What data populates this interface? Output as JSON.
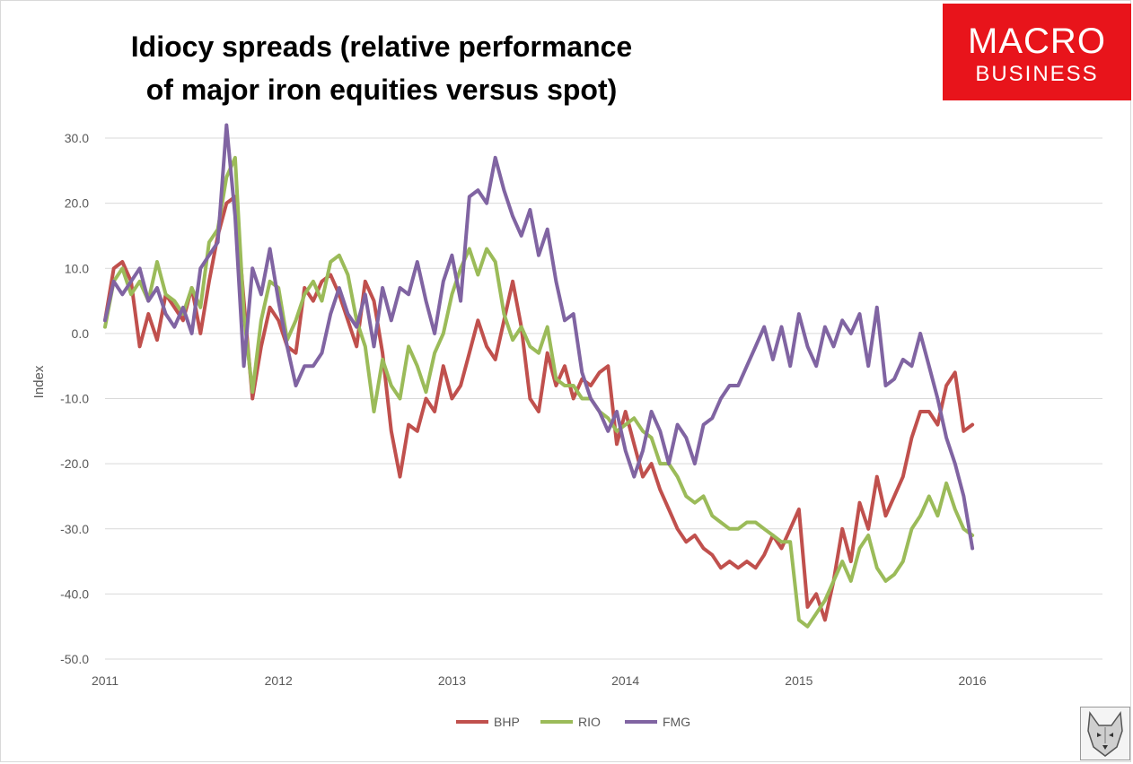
{
  "title": "Idiocy spreads (relative performance\nof major iron equities versus spot)",
  "logo": {
    "line1": "MACRO",
    "line2": "BUSINESS",
    "color": "#e8141b"
  },
  "watermark_icon": "wolf-head-icon",
  "chart_data": {
    "type": "line",
    "title": "Idiocy spreads (relative performance of major iron equities versus spot)",
    "xlabel": "",
    "ylabel": "Index",
    "xlim": [
      2011,
      2016.75
    ],
    "ylim": [
      -50,
      30
    ],
    "yticks": [
      30,
      20,
      10,
      0,
      -10,
      -20,
      -30,
      -40,
      -50
    ],
    "ytick_labels": [
      "30.0",
      "20.0",
      "10.0",
      "0.0",
      "-10.0",
      "-20.0",
      "-30.0",
      "-40.0",
      "-50.0"
    ],
    "xticks": [
      2011,
      2012,
      2013,
      2014,
      2015,
      2016
    ],
    "xtick_labels": [
      "2011",
      "2012",
      "2013",
      "2014",
      "2015",
      "2016"
    ],
    "grid": true,
    "legend": "bottom-center",
    "series": [
      {
        "name": "BHP",
        "color": "#c0504d",
        "x": [
          2011.0,
          2011.05,
          2011.1,
          2011.15,
          2011.2,
          2011.25,
          2011.3,
          2011.35,
          2011.4,
          2011.45,
          2011.5,
          2011.55,
          2011.6,
          2011.65,
          2011.7,
          2011.75,
          2011.8,
          2011.85,
          2011.9,
          2011.95,
          2012.0,
          2012.05,
          2012.1,
          2012.15,
          2012.2,
          2012.25,
          2012.3,
          2012.35,
          2012.4,
          2012.45,
          2012.5,
          2012.55,
          2012.6,
          2012.65,
          2012.7,
          2012.75,
          2012.8,
          2012.85,
          2012.9,
          2012.95,
          2013.0,
          2013.05,
          2013.1,
          2013.15,
          2013.2,
          2013.25,
          2013.3,
          2013.35,
          2013.4,
          2013.45,
          2013.5,
          2013.55,
          2013.6,
          2013.65,
          2013.7,
          2013.75,
          2013.8,
          2013.85,
          2013.9,
          2013.95,
          2014.0,
          2014.05,
          2014.1,
          2014.15,
          2014.2,
          2014.25,
          2014.3,
          2014.35,
          2014.4,
          2014.45,
          2014.5,
          2014.55,
          2014.6,
          2014.65,
          2014.7,
          2014.75,
          2014.8,
          2014.85,
          2014.9,
          2014.95,
          2015.0,
          2015.05,
          2015.1,
          2015.15,
          2015.2,
          2015.25,
          2015.3,
          2015.35,
          2015.4,
          2015.45,
          2015.5,
          2015.55,
          2015.6,
          2015.65,
          2015.7,
          2015.75,
          2015.8,
          2015.85,
          2015.9,
          2015.95,
          2016.0
        ],
        "values": [
          2,
          10,
          11,
          8,
          -2,
          3,
          -1,
          6,
          4,
          2,
          7,
          0,
          8,
          15,
          20,
          21,
          5,
          -10,
          -2,
          4,
          2,
          -2,
          -3,
          7,
          5,
          8,
          9,
          6,
          2,
          -2,
          8,
          5,
          -3,
          -15,
          -22,
          -14,
          -15,
          -10,
          -12,
          -5,
          -10,
          -8,
          -3,
          2,
          -2,
          -4,
          2,
          8,
          1,
          -10,
          -12,
          -3,
          -8,
          -5,
          -10,
          -7,
          -8,
          -6,
          -5,
          -17,
          -12,
          -17,
          -22,
          -20,
          -24,
          -27,
          -30,
          -32,
          -31,
          -33,
          -34,
          -36,
          -35,
          -36,
          -35,
          -36,
          -34,
          -31,
          -33,
          -30,
          -27,
          -42,
          -40,
          -44,
          -38,
          -30,
          -35,
          -26,
          -30,
          -22,
          -28,
          -25,
          -22,
          -16,
          -12,
          -12,
          -14,
          -8,
          -6,
          -15,
          -14
        ]
      },
      {
        "name": "RIO",
        "color": "#9bbb59",
        "x": [
          2011.0,
          2011.05,
          2011.1,
          2011.15,
          2011.2,
          2011.25,
          2011.3,
          2011.35,
          2011.4,
          2011.45,
          2011.5,
          2011.55,
          2011.6,
          2011.65,
          2011.7,
          2011.75,
          2011.8,
          2011.85,
          2011.9,
          2011.95,
          2012.0,
          2012.05,
          2012.1,
          2012.15,
          2012.2,
          2012.25,
          2012.3,
          2012.35,
          2012.4,
          2012.45,
          2012.5,
          2012.55,
          2012.6,
          2012.65,
          2012.7,
          2012.75,
          2012.8,
          2012.85,
          2012.9,
          2012.95,
          2013.0,
          2013.05,
          2013.1,
          2013.15,
          2013.2,
          2013.25,
          2013.3,
          2013.35,
          2013.4,
          2013.45,
          2013.5,
          2013.55,
          2013.6,
          2013.65,
          2013.7,
          2013.75,
          2013.8,
          2013.85,
          2013.9,
          2013.95,
          2014.0,
          2014.05,
          2014.1,
          2014.15,
          2014.2,
          2014.25,
          2014.3,
          2014.35,
          2014.4,
          2014.45,
          2014.5,
          2014.55,
          2014.6,
          2014.65,
          2014.7,
          2014.75,
          2014.8,
          2014.85,
          2014.9,
          2014.95,
          2015.0,
          2015.05,
          2015.1,
          2015.15,
          2015.2,
          2015.25,
          2015.3,
          2015.35,
          2015.4,
          2015.45,
          2015.5,
          2015.55,
          2015.6,
          2015.65,
          2015.7,
          2015.75,
          2015.8,
          2015.85,
          2015.9,
          2015.95,
          2016.0
        ],
        "values": [
          1,
          8,
          10,
          6,
          8,
          5,
          11,
          6,
          5,
          3,
          7,
          4,
          14,
          16,
          24,
          27,
          3,
          -9,
          2,
          8,
          7,
          -1,
          2,
          6,
          8,
          5,
          11,
          12,
          9,
          2,
          -2,
          -12,
          -4,
          -8,
          -10,
          -2,
          -5,
          -9,
          -3,
          0,
          6,
          10,
          13,
          9,
          13,
          11,
          3,
          -1,
          1,
          -2,
          -3,
          1,
          -7,
          -8,
          -8,
          -10,
          -10,
          -12,
          -13,
          -15,
          -14,
          -13,
          -15,
          -16,
          -20,
          -20,
          -22,
          -25,
          -26,
          -25,
          -28,
          -29,
          -30,
          -30,
          -29,
          -29,
          -30,
          -31,
          -32,
          -32,
          -44,
          -45,
          -43,
          -41,
          -38,
          -35,
          -38,
          -33,
          -31,
          -36,
          -38,
          -37,
          -35,
          -30,
          -28,
          -25,
          -28,
          -23,
          -27,
          -30,
          -31
        ]
      },
      {
        "name": "FMG",
        "color": "#8064a2",
        "x": [
          2011.0,
          2011.05,
          2011.1,
          2011.15,
          2011.2,
          2011.25,
          2011.3,
          2011.35,
          2011.4,
          2011.45,
          2011.5,
          2011.55,
          2011.6,
          2011.65,
          2011.7,
          2011.75,
          2011.8,
          2011.85,
          2011.9,
          2011.95,
          2012.0,
          2012.05,
          2012.1,
          2012.15,
          2012.2,
          2012.25,
          2012.3,
          2012.35,
          2012.4,
          2012.45,
          2012.5,
          2012.55,
          2012.6,
          2012.65,
          2012.7,
          2012.75,
          2012.8,
          2012.85,
          2012.9,
          2012.95,
          2013.0,
          2013.05,
          2013.1,
          2013.15,
          2013.2,
          2013.25,
          2013.3,
          2013.35,
          2013.4,
          2013.45,
          2013.5,
          2013.55,
          2013.6,
          2013.65,
          2013.7,
          2013.75,
          2013.8,
          2013.85,
          2013.9,
          2013.95,
          2014.0,
          2014.05,
          2014.1,
          2014.15,
          2014.2,
          2014.25,
          2014.3,
          2014.35,
          2014.4,
          2014.45,
          2014.5,
          2014.55,
          2014.6,
          2014.65,
          2014.7,
          2014.75,
          2014.8,
          2014.85,
          2014.9,
          2014.95,
          2015.0,
          2015.05,
          2015.1,
          2015.15,
          2015.2,
          2015.25,
          2015.3,
          2015.35,
          2015.4,
          2015.45,
          2015.5,
          2015.55,
          2015.6,
          2015.65,
          2015.7,
          2015.75,
          2015.8,
          2015.85,
          2015.9,
          2015.95,
          2016.0
        ],
        "values": [
          2,
          8,
          6,
          8,
          10,
          5,
          7,
          3,
          1,
          4,
          0,
          10,
          12,
          14,
          32,
          18,
          -5,
          10,
          6,
          13,
          5,
          -2,
          -8,
          -5,
          -5,
          -3,
          3,
          7,
          3,
          1,
          6,
          -2,
          7,
          2,
          7,
          6,
          11,
          5,
          0,
          8,
          12,
          5,
          21,
          22,
          20,
          27,
          22,
          18,
          15,
          19,
          12,
          16,
          8,
          2,
          3,
          -6,
          -10,
          -12,
          -15,
          -12,
          -18,
          -22,
          -18,
          -12,
          -15,
          -20,
          -14,
          -16,
          -20,
          -14,
          -13,
          -10,
          -8,
          -8,
          -5,
          -2,
          1,
          -4,
          1,
          -5,
          3,
          -2,
          -5,
          1,
          -2,
          2,
          0,
          3,
          -5,
          4,
          -8,
          -7,
          -4,
          -5,
          0,
          -5,
          -10,
          -16,
          -20,
          -25,
          -33
        ]
      }
    ]
  }
}
